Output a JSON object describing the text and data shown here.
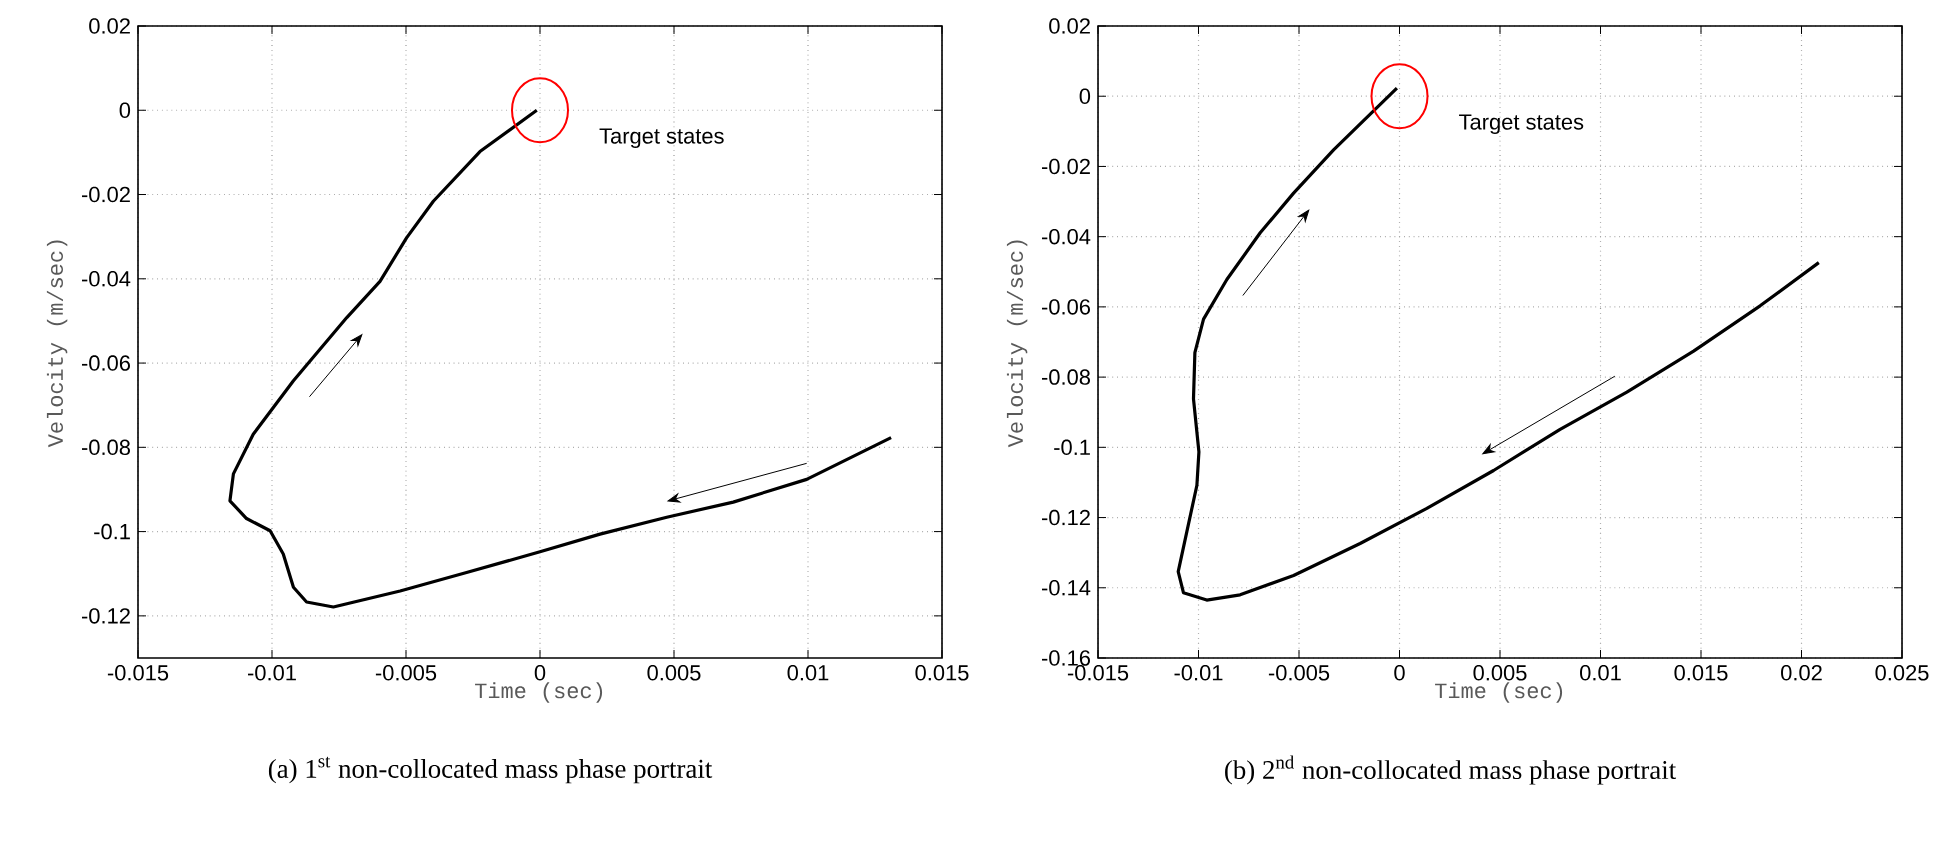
{
  "chart_data": [
    {
      "type": "line",
      "title": "(a) 1$^{st}$ non-collocated mass phase portrait",
      "xlabel": "Time (sec)",
      "ylabel": "Velocity (m/sec)",
      "series": [
        {
          "color": "#000000",
          "x": [
            0.0131,
            0.00995,
            0.00721,
            0.00473,
            0.00224,
            0.0,
            -0.00274,
            -0.00522,
            -0.00771,
            -0.00871,
            -0.0092,
            -0.00958,
            -0.01007,
            -0.01095,
            -0.01157,
            -0.01144,
            -0.0107,
            -0.0092,
            -0.00721,
            -0.00597,
            -0.00498,
            -0.00398,
            -0.00224,
            -0.00012
          ],
          "values": [
            -0.0777,
            -0.0876,
            -0.093,
            -0.0966,
            -0.1006,
            -0.1048,
            -0.1097,
            -0.1141,
            -0.1179,
            -0.1167,
            -0.1132,
            -0.1053,
            -0.0998,
            -0.0969,
            -0.0927,
            -0.0863,
            -0.0769,
            -0.0642,
            -0.0492,
            -0.0406,
            -0.0303,
            -0.0216,
            -0.0098,
            0.0
          ]
        }
      ],
      "annotations": [
        {
          "text": "Target states",
          "x": 0,
          "y": 0
        }
      ],
      "xlim": [
        -0.015,
        0.015
      ],
      "xticks": [
        -0.015,
        -0.01,
        -0.005,
        0,
        0.005,
        0.01,
        0.015
      ],
      "ylim": [
        -0.13,
        0.02
      ],
      "yticks": [
        0.02,
        0,
        -0.02,
        -0.04,
        -0.06,
        -0.08,
        -0.1,
        -0.12
      ],
      "grid": true,
      "marker": "none",
      "line_style": "solid"
    },
    {
      "type": "line",
      "title": "(b) 2$^{nd}$ non-collocated mass phase portrait",
      "xlabel": "Time (sec)",
      "ylabel": "Velocity (m/sec)",
      "series": [
        {
          "color": "#000000",
          "x": [
            0.02086,
            0.01794,
            0.01463,
            0.01131,
            0.00799,
            0.00468,
            0.00136,
            -0.00196,
            -0.00527,
            -0.00793,
            -0.00959,
            -0.01075,
            -0.01101,
            -0.01058,
            -0.01008,
            -0.00998,
            -0.01025,
            -0.01018,
            -0.00975,
            -0.00859,
            -0.00693,
            -0.00527,
            -0.00328,
            -0.00013
          ],
          "values": [
            -0.0474,
            -0.0597,
            -0.0726,
            -0.0843,
            -0.0949,
            -0.1066,
            -0.1174,
            -0.1274,
            -0.1365,
            -0.142,
            -0.1435,
            -0.1414,
            -0.1354,
            -0.124,
            -0.1108,
            -0.1013,
            -0.0862,
            -0.073,
            -0.0635,
            -0.0522,
            -0.0389,
            -0.0276,
            -0.0153,
            0.0023
          ]
        }
      ],
      "annotations": [
        {
          "text": "Target states",
          "x": 0,
          "y": 0
        }
      ],
      "xlim": [
        -0.015,
        0.025
      ],
      "xticks": [
        -0.015,
        -0.01,
        -0.005,
        0,
        0.005,
        0.01,
        0.015,
        0.02,
        0.025
      ],
      "ylim": [
        -0.16,
        0.02
      ],
      "yticks": [
        -0.16,
        -0.14,
        -0.12,
        -0.1,
        -0.08,
        -0.06,
        -0.04,
        -0.02,
        0,
        0.02
      ],
      "grid": true,
      "marker": "none",
      "line_style": "solid"
    }
  ]
}
